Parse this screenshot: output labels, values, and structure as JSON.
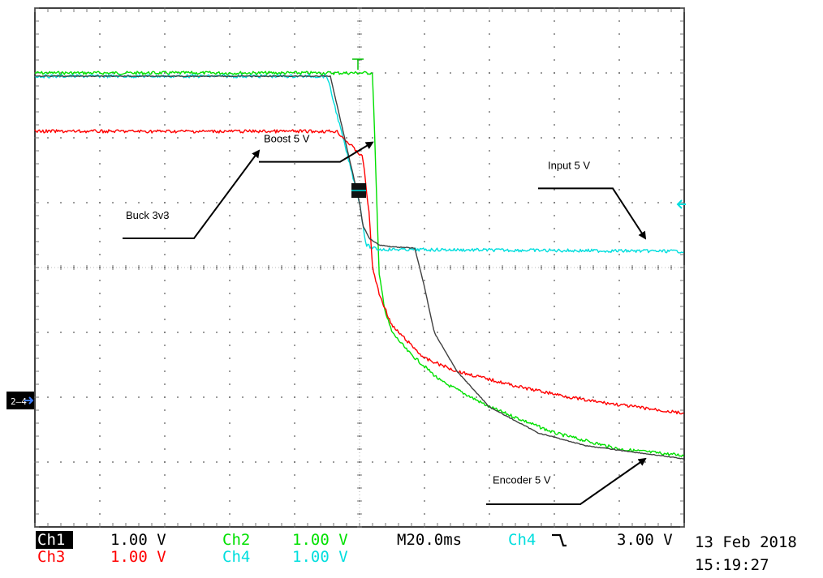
{
  "chart_data": {
    "type": "line",
    "title": "",
    "xlabel": "",
    "ylabel": "",
    "grid": true,
    "x_divisions": 10,
    "y_divisions": 8,
    "x_unit": "ms",
    "x_per_div": 20,
    "y_unit": "V",
    "y_per_div": 1,
    "xlim": [
      0,
      200
    ],
    "ylim": [
      -4,
      4
    ],
    "trigger_x": 100,
    "series": [
      {
        "id": "ch2",
        "color": "#00e000",
        "points": [
          [
            0,
            3.0
          ],
          [
            94,
            3.0
          ],
          [
            101,
            3.0
          ],
          [
            104,
            3.0
          ],
          [
            105,
            1.5
          ],
          [
            106,
            -0.1
          ],
          [
            108,
            -0.7
          ],
          [
            110,
            -1.0
          ],
          [
            115,
            -1.3
          ],
          [
            125,
            -1.75
          ],
          [
            140,
            -2.15
          ],
          [
            160,
            -2.55
          ],
          [
            180,
            -2.8
          ],
          [
            200,
            -2.9
          ]
        ]
      },
      {
        "id": "ch4",
        "color": "#00dede",
        "points": [
          [
            0,
            2.95
          ],
          [
            90,
            2.95
          ],
          [
            100,
            1.0
          ],
          [
            102,
            0.35
          ],
          [
            104,
            0.3
          ],
          [
            106,
            0.28
          ],
          [
            200,
            0.25
          ]
        ]
      },
      {
        "id": "ch3",
        "color": "#ff0000",
        "points": [
          [
            0,
            2.1
          ],
          [
            93,
            2.1
          ],
          [
            101,
            1.7
          ],
          [
            103,
            0.8
          ],
          [
            104,
            0.0
          ],
          [
            106,
            -0.4
          ],
          [
            110,
            -0.9
          ],
          [
            120,
            -1.4
          ],
          [
            130,
            -1.6
          ],
          [
            150,
            -1.85
          ],
          [
            170,
            -2.05
          ],
          [
            200,
            -2.25
          ]
        ]
      },
      {
        "id": "ch1",
        "color": "#404040",
        "points": [
          [
            0,
            2.95
          ],
          [
            91,
            2.95
          ],
          [
            100,
            1.0
          ],
          [
            101,
            0.65
          ],
          [
            103,
            0.45
          ],
          [
            106,
            0.35
          ],
          [
            110,
            0.32
          ],
          [
            117,
            0.3
          ],
          [
            120,
            -0.3
          ],
          [
            123,
            -1.0
          ],
          [
            130,
            -1.6
          ],
          [
            140,
            -2.15
          ],
          [
            155,
            -2.55
          ],
          [
            170,
            -2.75
          ],
          [
            200,
            -2.95
          ]
        ]
      }
    ],
    "annotations": [
      {
        "label": "Boost 5 V",
        "tx": 70.5,
        "ty": 1.93,
        "line": [
          [
            69,
            1.63
          ],
          [
            94,
            1.63
          ],
          [
            104,
            1.93
          ]
        ]
      },
      {
        "label": "Input 5 V",
        "tx": 158,
        "ty": 1.52,
        "line": [
          [
            155,
            1.22
          ],
          [
            178,
            1.22
          ],
          [
            188,
            0.45
          ]
        ]
      },
      {
        "label": "Buck 3v3",
        "tx": 28,
        "ty": 0.75,
        "line": [
          [
            27,
            0.45
          ],
          [
            49,
            0.45
          ],
          [
            69,
            1.8
          ]
        ]
      },
      {
        "label": "Encoder 5 V",
        "tx": 141,
        "ty": -3.33,
        "line": [
          [
            139,
            -3.65
          ],
          [
            168,
            -3.65
          ],
          [
            188,
            -2.95
          ]
        ]
      }
    ]
  },
  "status": {
    "ch1_label": "Ch1",
    "ch1_scale": "1.00 V",
    "ch2_label": "Ch2",
    "ch2_scale": "1.00 V",
    "ch3_label": "Ch3",
    "ch3_scale": "1.00 V",
    "ch4_label": "Ch4",
    "ch4_scale": "1.00 V",
    "timebase": "M20.0ms",
    "trigger_source": "Ch4",
    "trigger_slope_icon": "falling-edge-icon",
    "trigger_slope_glyph": "⿺",
    "trigger_level": "3.00 V",
    "date": "13 Feb 2018",
    "time": "15:19:27"
  },
  "markers": {
    "trigger_marker_label": "T",
    "ground_marker_label": "2–4"
  }
}
